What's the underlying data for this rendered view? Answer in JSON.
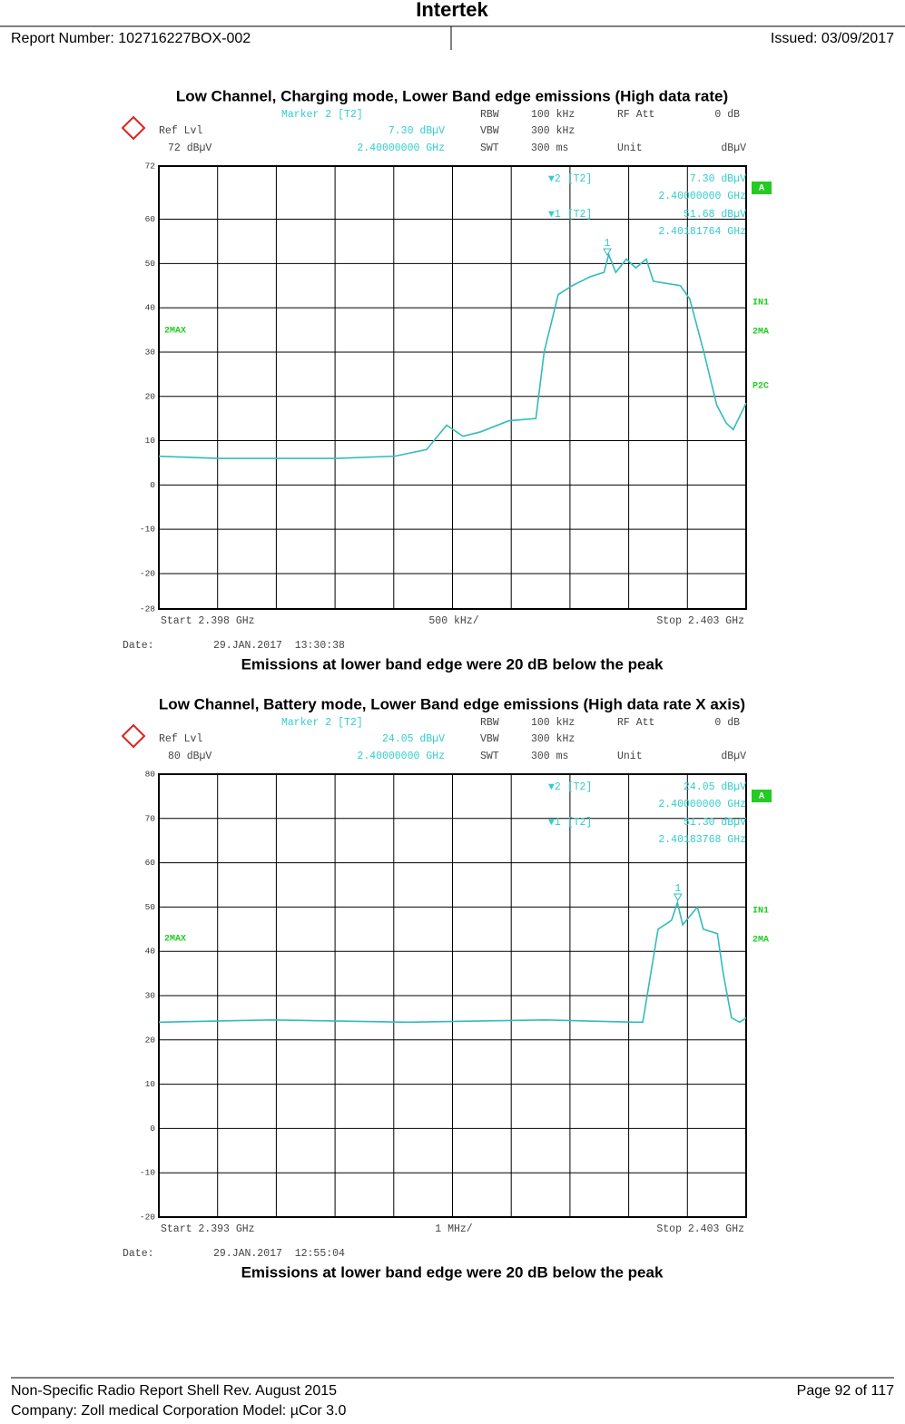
{
  "header": {
    "title": "Intertek",
    "report_number": "Report Number: 102716227BOX-002",
    "issued": "Issued: 03/09/2017"
  },
  "footer": {
    "shell": "Non-Specific Radio Report Shell Rev. August 2015",
    "page": "Page 92 of 117",
    "company": "Company: Zoll medical Corporation Model: µCor 3.0"
  },
  "chart_data": [
    {
      "type": "line",
      "title": "Low Channel, Charging mode, Lower Band edge emissions (High data rate)",
      "caption": "Emissions at lower band edge were 20 dB below the peak",
      "analyzer": {
        "marker": "Marker 2 [T2]",
        "rbw": "RBW",
        "rbw_value": "100 kHz",
        "rf_att": "RF Att",
        "rf_att_value": "0 dB",
        "ref_lvl": "Ref Lvl",
        "marker_level": "7.30 dBµV",
        "vbw": "VBW",
        "vbw_value": "300 kHz",
        "ref_level": "72 dBµV",
        "marker_freq": "2.40000000 GHz",
        "swt": "SWT",
        "swt_value": "300 ms",
        "unit": "Unit",
        "unit_value": "dBµV",
        "start": "Start 2.398 GHz",
        "span": "500 kHz/",
        "stop": "Stop 2.403 GHz",
        "date": "Date:",
        "timestamp": "29.JAN.2017  13:30:38",
        "marker_table": [
          "▼2 [T2]",
          "7.30 dBµV",
          "2.40000000 GHz",
          "▼1 [T2]",
          "51.68 dBµV",
          "2.40181764 GHz"
        ],
        "side_labels": [
          "A",
          "IN1",
          "2MA",
          "P2C"
        ],
        "trace_label": "2MAX"
      },
      "xlim": [
        2.398,
        2.403
      ],
      "ylim": [
        -28,
        72
      ],
      "yticks": [
        72,
        60,
        50,
        40,
        30,
        20,
        10,
        0,
        -10,
        -20,
        -28
      ],
      "grid": true,
      "color": "#33bbbb",
      "x": [
        2.398,
        2.3985,
        2.39897,
        2.39951,
        2.40001,
        2.40028,
        2.40045,
        2.40059,
        2.40074,
        2.40098,
        2.40121,
        2.40128,
        2.4014,
        2.40152,
        2.40167,
        2.40179,
        2.40183,
        2.40189,
        2.40198,
        2.40206,
        2.40215,
        2.40221,
        2.40244,
        2.40252,
        2.40264,
        2.40275,
        2.40283,
        2.40289,
        2.403
      ],
      "values": [
        6.5,
        6,
        6,
        6,
        6.5,
        8,
        13.5,
        11,
        12,
        14.5,
        15,
        30,
        43,
        45,
        47,
        48,
        52,
        48,
        51,
        49,
        51,
        46,
        45,
        42,
        30,
        18,
        14,
        12.5,
        18.5
      ],
      "marker": {
        "label": "1",
        "x": 2.40181764,
        "y": 51.68
      }
    },
    {
      "type": "line",
      "title": "Low Channel, Battery mode, Lower Band edge emissions (High data rate X axis)",
      "caption": "Emissions at lower band edge were 20 dB below the peak",
      "analyzer": {
        "marker": "Marker 2 [T2]",
        "rbw": "RBW",
        "rbw_value": "100 kHz",
        "rf_att": "RF Att",
        "rf_att_value": "0 dB",
        "ref_lvl": "Ref Lvl",
        "marker_level": "24.05 dBµV",
        "vbw": "VBW",
        "vbw_value": "300 kHz",
        "ref_level": "80 dBµV",
        "marker_freq": "2.40000000 GHz",
        "swt": "SWT",
        "swt_value": "300 ms",
        "unit": "Unit",
        "unit_value": "dBµV",
        "start": "Start 2.393 GHz",
        "span": "1 MHz/",
        "stop": "Stop 2.403 GHz",
        "date": "Date:",
        "timestamp": "29.JAN.2017  12:55:04",
        "marker_table": [
          "▼2 [T2]",
          "24.05 dBµV",
          "2.40000000 GHz",
          "▼1 [T2]",
          "51.30 dBµV",
          "2.40183768 GHz"
        ],
        "side_labels": [
          "A",
          "IN1",
          "2MA"
        ],
        "trace_label": "2MAX"
      },
      "xlim": [
        2.393,
        2.403
      ],
      "ylim": [
        -20,
        80
      ],
      "yticks": [
        80,
        70,
        60,
        50,
        40,
        30,
        20,
        10,
        0,
        -10,
        -20
      ],
      "grid": true,
      "color": "#33bbbb",
      "x": [
        2.393,
        2.39493,
        2.39725,
        2.39957,
        2.40111,
        2.40124,
        2.4015,
        2.40173,
        2.40183,
        2.40192,
        2.40217,
        2.40227,
        2.40251,
        2.40261,
        2.40275,
        2.40289,
        2.403
      ],
      "values": [
        24,
        24.5,
        24,
        24.5,
        24,
        24,
        45,
        47,
        51,
        46,
        50,
        45,
        44,
        35,
        25,
        24,
        25
      ],
      "marker": {
        "label": "1",
        "x": 2.40183768,
        "y": 51.3
      }
    }
  ]
}
